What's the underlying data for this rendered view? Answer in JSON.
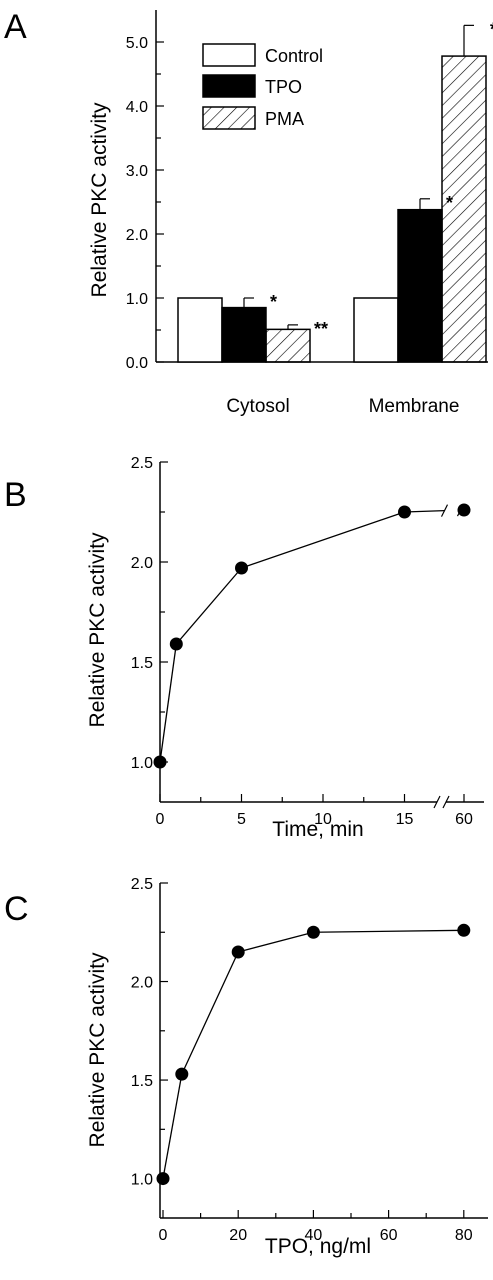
{
  "chart_data": [
    {
      "panel": "A",
      "type": "bar",
      "ylabel": "Relative PKC activity",
      "ylim": [
        0,
        5.5
      ],
      "yticks": [
        "0.0",
        "1.0",
        "2.0",
        "3.0",
        "4.0",
        "5.0"
      ],
      "grid": false,
      "legend_position": "top-left",
      "categories": [
        "Cytosol",
        "Membrane"
      ],
      "series": [
        {
          "name": "Control",
          "values": [
            1.0,
            1.0
          ],
          "errors": [
            0,
            0
          ],
          "marks": [
            "",
            ""
          ],
          "fill": "white"
        },
        {
          "name": "TPO",
          "values": [
            0.85,
            2.38
          ],
          "errors": [
            0.15,
            0.17
          ],
          "marks": [
            "*",
            "*"
          ],
          "fill": "black"
        },
        {
          "name": "PMA",
          "values": [
            0.51,
            4.78
          ],
          "errors": [
            0.07,
            0.48
          ],
          "marks": [
            "**",
            "**"
          ],
          "fill": "hatch"
        }
      ]
    },
    {
      "panel": "B",
      "type": "line",
      "xlabel": "Time, min",
      "ylabel": "Relative PKC activity",
      "xticks": [
        "0",
        "5",
        "10",
        "15",
        "60"
      ],
      "ylim": [
        0.8,
        2.5
      ],
      "yticks": [
        "1.0",
        "1.5",
        "2.0",
        "2.5"
      ],
      "axis_break": "between 15 and 60",
      "grid": false,
      "x": [
        0,
        1,
        5,
        15,
        60
      ],
      "y": [
        1.0,
        1.59,
        1.97,
        2.25,
        2.26
      ]
    },
    {
      "panel": "C",
      "type": "line",
      "xlabel": "TPO, ng/ml",
      "ylabel": "Relative PKC activity",
      "xlim": [
        0,
        85
      ],
      "xticks": [
        "0",
        "20",
        "40",
        "60",
        "80"
      ],
      "ylim": [
        0.8,
        2.5
      ],
      "yticks": [
        "1.0",
        "1.5",
        "2.0",
        "2.5"
      ],
      "grid": false,
      "x": [
        0,
        5,
        20,
        40,
        80
      ],
      "y": [
        1.0,
        1.53,
        2.15,
        2.25,
        2.26
      ]
    }
  ]
}
